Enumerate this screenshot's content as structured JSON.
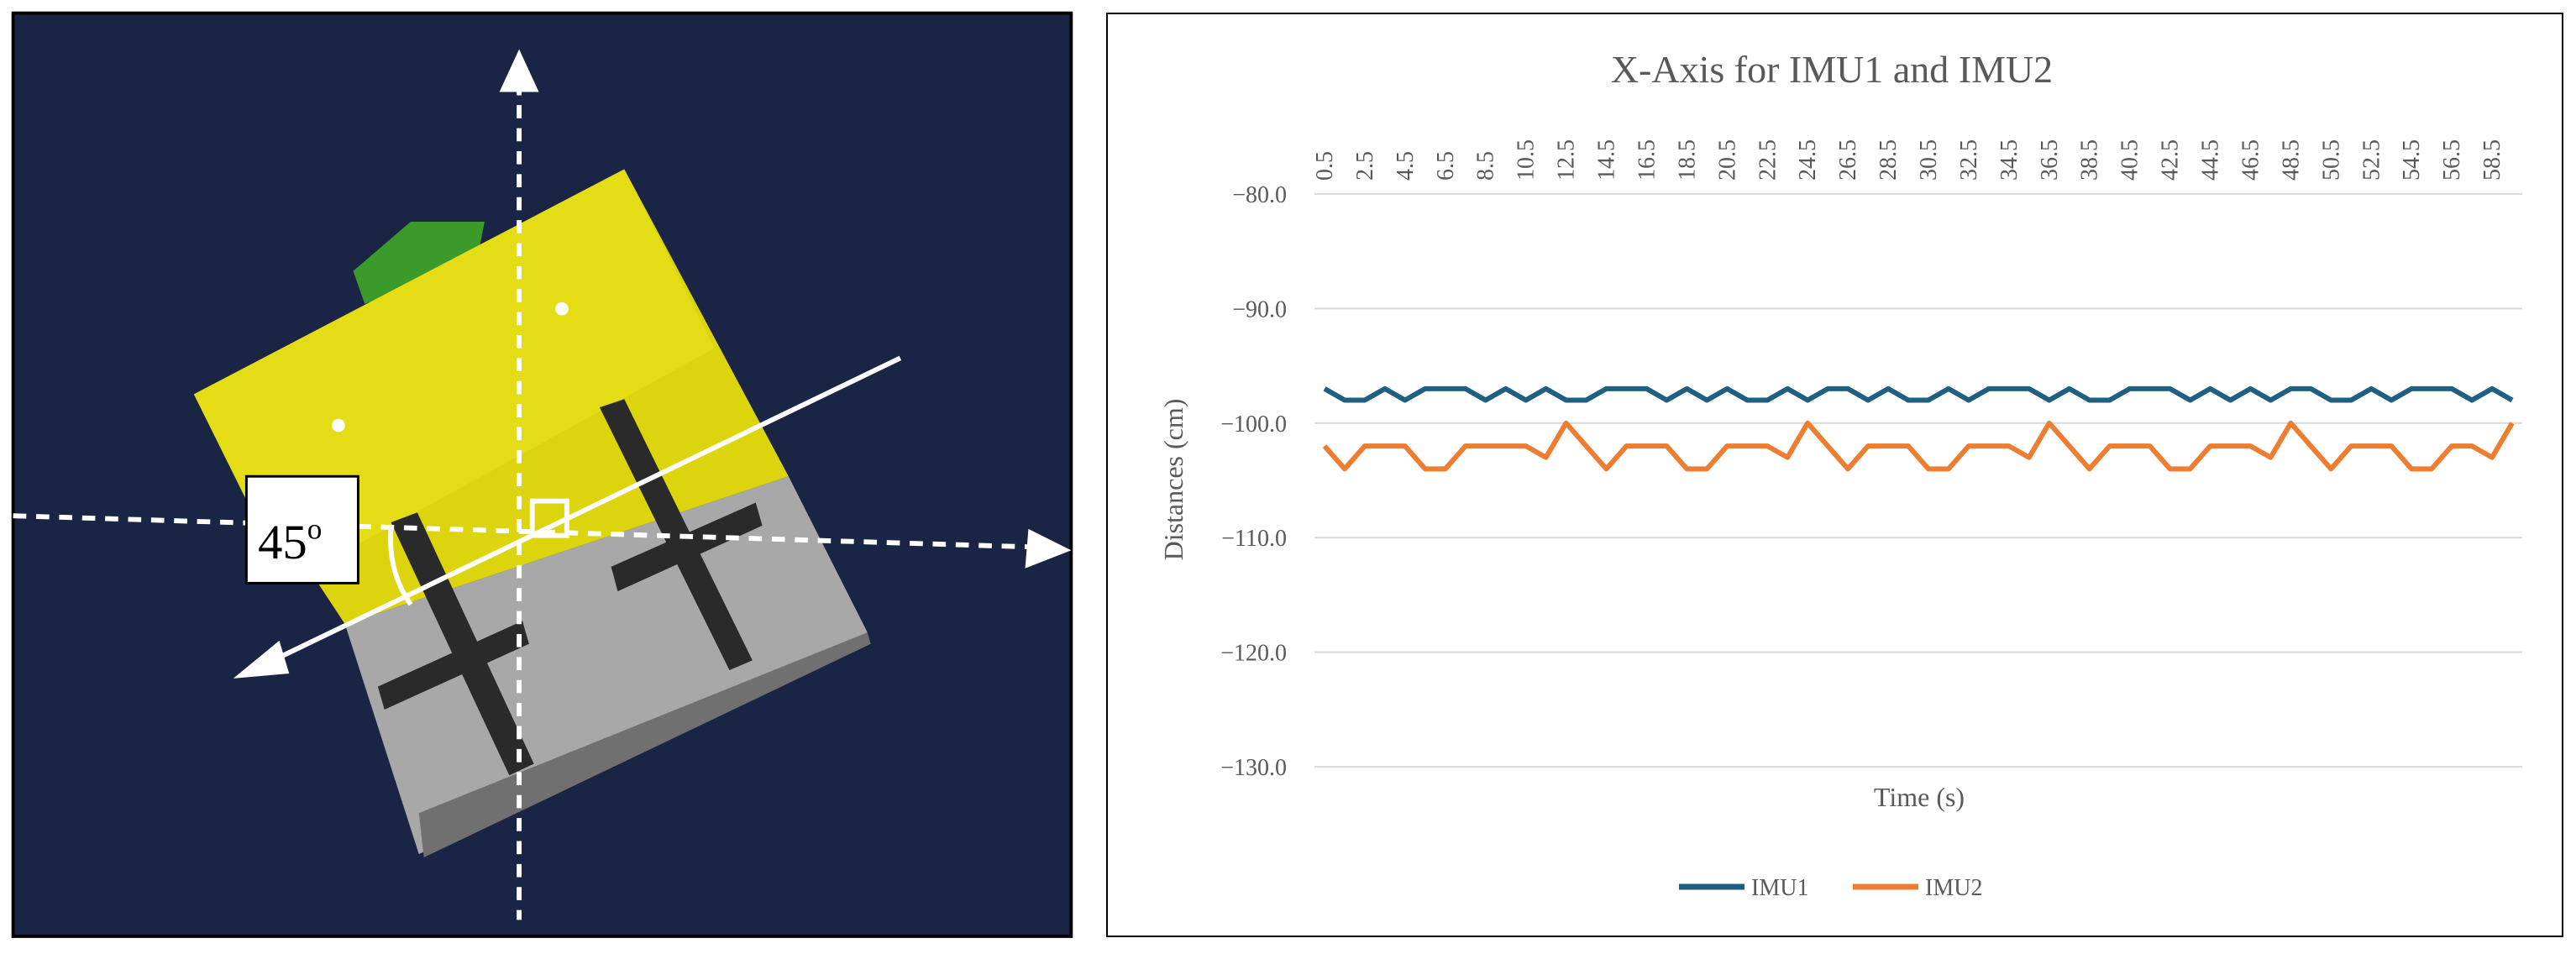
{
  "left": {
    "angle_label": "45",
    "angle_sup": "o"
  },
  "chart_data": {
    "type": "line",
    "title": "X-Axis for IMU1 and IMU2",
    "x_label": "Time (s)",
    "y_label": "Distances (cm)",
    "categories": [
      "0.5",
      null,
      "2.5",
      null,
      "4.5",
      null,
      "6.5",
      null,
      "8.5",
      null,
      "10.5",
      null,
      "12.5",
      null,
      "14.5",
      null,
      "16.5",
      null,
      "18.5",
      null,
      "20.5",
      null,
      "22.5",
      null,
      "24.5",
      null,
      "26.5",
      null,
      "28.5",
      null,
      "30.5",
      null,
      "32.5",
      null,
      "34.5",
      null,
      "36.5",
      null,
      "38.5",
      null,
      "40.5",
      null,
      "42.5",
      null,
      "44.5",
      null,
      "46.5",
      null,
      "48.5",
      null,
      "50.5",
      null,
      "52.5",
      null,
      "54.5",
      null,
      "56.5",
      null,
      "58.5",
      null
    ],
    "series": [
      {
        "name": "IMU1",
        "color": "#1f5f80",
        "values": [
          -97,
          -98,
          -98,
          -97,
          -98,
          -97,
          -97,
          -97,
          -98,
          -97,
          -98,
          -97,
          -98,
          -98,
          -97,
          -97,
          -97,
          -98,
          -97,
          -98,
          -97,
          -98,
          -98,
          -97,
          -98,
          -97,
          -97,
          -98,
          -97,
          -98,
          -98,
          -97,
          -98,
          -97,
          -97,
          -97,
          -98,
          -97,
          -98,
          -98,
          -97,
          -97,
          -97,
          -98,
          -97,
          -98,
          -97,
          -98,
          -97,
          -97,
          -98,
          -98,
          -97,
          -98,
          -97,
          -97,
          -97,
          -98,
          -97,
          -98
        ]
      },
      {
        "name": "IMU2",
        "color": "#ed7d31",
        "values": [
          -102,
          -104,
          -102,
          -102,
          -102,
          -104,
          -104,
          -102,
          -102,
          -102,
          -102,
          -103,
          -100,
          -102,
          -104,
          -102,
          -102,
          -102,
          -104,
          -104,
          -102,
          -102,
          -102,
          -103,
          -100,
          -102,
          -104,
          -102,
          -102,
          -102,
          -104,
          -104,
          -102,
          -102,
          -102,
          -103,
          -100,
          -102,
          -104,
          -102,
          -102,
          -102,
          -104,
          -104,
          -102,
          -102,
          -102,
          -103,
          -100,
          -102,
          -104,
          -102,
          -102,
          -102,
          -104,
          -104,
          -102,
          -102,
          -103,
          -100
        ]
      }
    ],
    "ylim": [
      -130,
      -80
    ],
    "yticks": [
      {
        "value": -80,
        "label": "−80.0"
      },
      {
        "value": -90,
        "label": "−90.0"
      },
      {
        "value": -100,
        "label": "−100.0"
      },
      {
        "value": -110,
        "label": "−110.0"
      },
      {
        "value": -120,
        "label": "−120.0"
      },
      {
        "value": -130,
        "label": "−130.0"
      }
    ],
    "grid": true,
    "legend": "bottom"
  }
}
